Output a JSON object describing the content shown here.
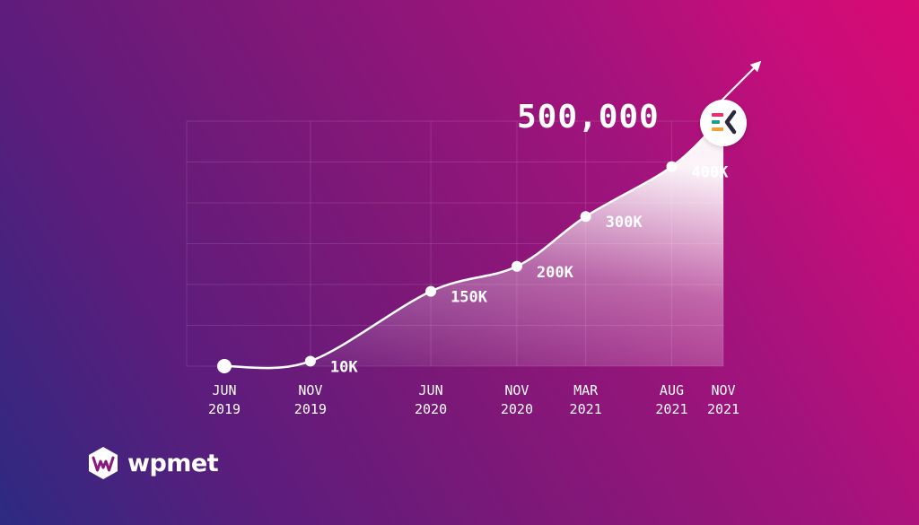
{
  "chart_data": {
    "type": "line",
    "title": "",
    "xlabel": "",
    "ylabel": "",
    "x": [
      {
        "month": "JUN",
        "year": "2019"
      },
      {
        "month": "NOV",
        "year": "2019"
      },
      {
        "month": "JUN",
        "year": "2020"
      },
      {
        "month": "NOV",
        "year": "2020"
      },
      {
        "month": "MAR",
        "year": "2021"
      },
      {
        "month": "AUG",
        "year": "2021"
      },
      {
        "month": "NOV",
        "year": "2021"
      }
    ],
    "x_dates": [
      "2019-06",
      "2019-11",
      "2020-06",
      "2020-11",
      "2021-03",
      "2021-08",
      "2021-11"
    ],
    "values": [
      0,
      10000,
      150000,
      200000,
      300000,
      400000,
      500000
    ],
    "point_labels": [
      "",
      "10K",
      "150K",
      "200K",
      "300K",
      "400K",
      ""
    ],
    "ylim": [
      0,
      500000
    ],
    "grid": true,
    "area_fill": true,
    "trend_arrow": true
  },
  "headline": {
    "value": "500,000",
    "badge_icon": "elementskit-logo-icon",
    "badge_colors": [
      "#e8326b",
      "#1e9d8b",
      "#f2a13a",
      "#2a2a3a"
    ]
  },
  "brand": {
    "name": "wpmet",
    "icon": "wpmet-logo-icon"
  },
  "colors": {
    "line": "#ffffff",
    "grid": "#ffffff",
    "background_start": "#2d2a82",
    "background_end": "#d80a73"
  }
}
